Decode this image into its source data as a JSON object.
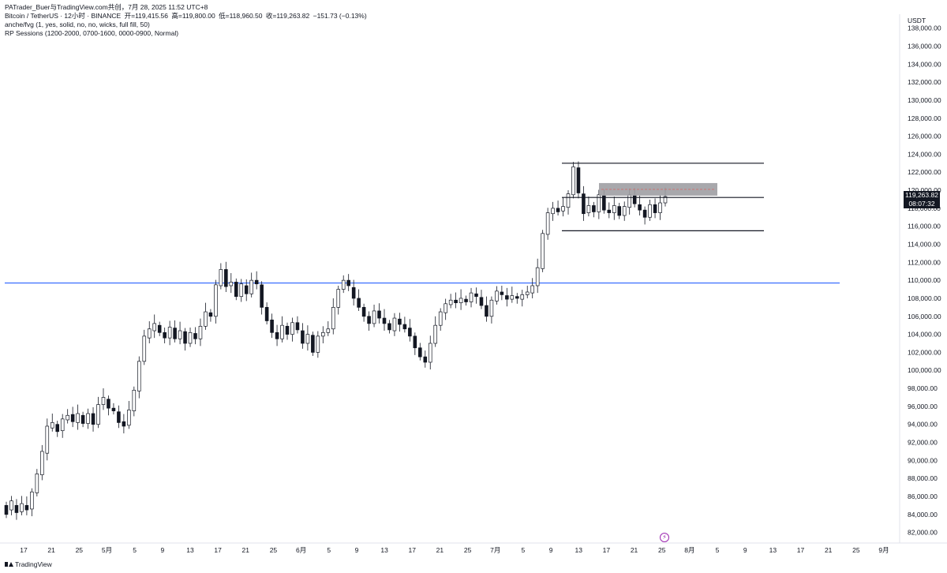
{
  "header": {
    "attribution": "PATrader_Buer与TradingView.com共创，7月 28, 2025 11:52 UTC+8",
    "symbol": "Bitcoin / TetherUS · 12小时 · BINANCE",
    "open": "开=119,415.56",
    "high": "高=119,800.00",
    "low": "低=118,960.50",
    "close": "收=119,263.82",
    "change": "−151.73 (−0.13%)",
    "indicator1": "anche/fvg (1, yes, solid, no, no, wicks, full fill, 50)",
    "indicator2": "RP Sessions (1200-2000, 0700-1600, 0000-0900, Normal)"
  },
  "price_axis": {
    "unit": "USDT"
  },
  "price_tag": {
    "price": "119,263.82",
    "countdown": "08:07:32"
  },
  "footer": {
    "brand": "TradingView"
  },
  "colors": {
    "horizontal_line": "#2962ff",
    "up_candle": "#ffffff",
    "down_candle": "#131722",
    "fvg_box": "#9e9ea3",
    "range_lines": "#131722"
  },
  "chart_data": {
    "type": "candlestick",
    "title": "Bitcoin / TetherUS · 12小时 · BINANCE",
    "ylim": [
      81000,
      138500
    ],
    "y_ticks": [
      "82,000.00",
      "84,000.00",
      "86,000.00",
      "88,000.00",
      "90,000.00",
      "92,000.00",
      "94,000.00",
      "96,000.00",
      "98,000.00",
      "100,000.00",
      "102,000.00",
      "104,000.00",
      "106,000.00",
      "108,000.00",
      "110,000.00",
      "112,000.00",
      "114,000.00",
      "116,000.00",
      "118,000.00",
      "120,000.00",
      "122,000.00",
      "124,000.00",
      "126,000.00",
      "128,000.00",
      "130,000.00",
      "132,000.00",
      "134,000.00",
      "136,000.00",
      "138,000.00"
    ],
    "x_ticks": [
      "17",
      "21",
      "25",
      "5月",
      "5",
      "9",
      "13",
      "17",
      "21",
      "25",
      "6月",
      "5",
      "9",
      "13",
      "17",
      "21",
      "25",
      "7月",
      "5",
      "9",
      "13",
      "17",
      "21",
      "25",
      "8月",
      "5",
      "9",
      "13",
      "17",
      "21",
      "25",
      "9月"
    ],
    "horizontal_line": 109700,
    "range_lines": [
      123000,
      119200,
      115500
    ],
    "fvg_box": {
      "top": 120800,
      "bottom": 119400
    },
    "price_path": [
      [
        85000,
        84000
      ],
      [
        84500,
        85500
      ],
      [
        85000,
        84200
      ],
      [
        84300,
        85200
      ],
      [
        85000,
        84500
      ],
      [
        84600,
        86500
      ],
      [
        86400,
        88500
      ],
      [
        88400,
        91000
      ],
      [
        90800,
        93800
      ],
      [
        93600,
        94200
      ],
      [
        94000,
        93200
      ],
      [
        93300,
        94600
      ],
      [
        94500,
        95000
      ],
      [
        95100,
        94300
      ],
      [
        94200,
        95200
      ],
      [
        95000,
        94100
      ],
      [
        94100,
        95200
      ],
      [
        95200,
        94000
      ],
      [
        94000,
        96200
      ],
      [
        96200,
        97000
      ],
      [
        96800,
        95800
      ],
      [
        95800,
        95500
      ],
      [
        95400,
        94200
      ],
      [
        94300,
        93800
      ],
      [
        93900,
        95600
      ],
      [
        95500,
        97800
      ],
      [
        97700,
        101000
      ],
      [
        101000,
        103800
      ],
      [
        103600,
        104600
      ],
      [
        104400,
        105200
      ],
      [
        105000,
        104200
      ],
      [
        104200,
        103600
      ],
      [
        103600,
        104800
      ],
      [
        104700,
        103500
      ],
      [
        103500,
        104400
      ],
      [
        104300,
        103000
      ],
      [
        103000,
        104200
      ],
      [
        104100,
        103500
      ],
      [
        103500,
        104900
      ],
      [
        104900,
        106500
      ],
      [
        106400,
        106000
      ],
      [
        106000,
        109500
      ],
      [
        109400,
        111200
      ],
      [
        111200,
        109300
      ],
      [
        109400,
        109800
      ],
      [
        109800,
        108200
      ],
      [
        108200,
        109600
      ],
      [
        109400,
        108500
      ],
      [
        108500,
        110000
      ],
      [
        110000,
        109600
      ],
      [
        109500,
        107000
      ],
      [
        107000,
        105500
      ],
      [
        105600,
        104200
      ],
      [
        104200,
        103500
      ],
      [
        103500,
        105000
      ],
      [
        104900,
        104000
      ],
      [
        104000,
        105300
      ],
      [
        105300,
        104500
      ],
      [
        104400,
        103000
      ],
      [
        103000,
        104000
      ],
      [
        103900,
        102000
      ],
      [
        102000,
        103800
      ],
      [
        103800,
        104200
      ],
      [
        104200,
        104600
      ],
      [
        104600,
        107000
      ],
      [
        107000,
        109000
      ],
      [
        109000,
        110000
      ],
      [
        110000,
        109400
      ],
      [
        109200,
        108000
      ],
      [
        108000,
        107000
      ],
      [
        107000,
        106000
      ],
      [
        106000,
        105200
      ],
      [
        105200,
        106600
      ],
      [
        106600,
        105800
      ],
      [
        105800,
        105200
      ],
      [
        105200,
        104500
      ],
      [
        104400,
        105800
      ],
      [
        105700,
        105100
      ],
      [
        105100,
        104600
      ],
      [
        104700,
        103800
      ],
      [
        103800,
        102500
      ],
      [
        102500,
        101500
      ],
      [
        101500,
        100900
      ],
      [
        100900,
        103000
      ],
      [
        103000,
        105000
      ],
      [
        105000,
        106500
      ],
      [
        106400,
        107400
      ],
      [
        107300,
        107800
      ],
      [
        107800,
        107500
      ],
      [
        107500,
        108000
      ],
      [
        107900,
        107600
      ],
      [
        107600,
        108600
      ],
      [
        108500,
        108200
      ],
      [
        108100,
        107200
      ],
      [
        107200,
        106000
      ],
      [
        106000,
        107800
      ],
      [
        107700,
        108800
      ],
      [
        108700,
        108400
      ],
      [
        108300,
        107900
      ],
      [
        107900,
        108300
      ],
      [
        108200,
        108000
      ],
      [
        107900,
        108400
      ],
      [
        108400,
        108700
      ],
      [
        108600,
        109400
      ],
      [
        109400,
        111400
      ],
      [
        111300,
        115200
      ],
      [
        115100,
        117500
      ],
      [
        117400,
        118000
      ],
      [
        118000,
        117600
      ],
      [
        117700,
        118200
      ],
      [
        118100,
        119600
      ],
      [
        119500,
        122600
      ],
      [
        122500,
        119700
      ],
      [
        119600,
        117400
      ],
      [
        117500,
        118300
      ],
      [
        118300,
        117600
      ],
      [
        117600,
        119500
      ],
      [
        119400,
        117800
      ],
      [
        117800,
        117500
      ],
      [
        117500,
        118300
      ],
      [
        118200,
        117200
      ],
      [
        117200,
        118200
      ],
      [
        118100,
        119500
      ],
      [
        119400,
        118500
      ],
      [
        118400,
        117800
      ],
      [
        117800,
        117000
      ],
      [
        117000,
        118400
      ],
      [
        118400,
        117500
      ],
      [
        117500,
        118600
      ],
      [
        118600,
        119300
      ]
    ]
  }
}
